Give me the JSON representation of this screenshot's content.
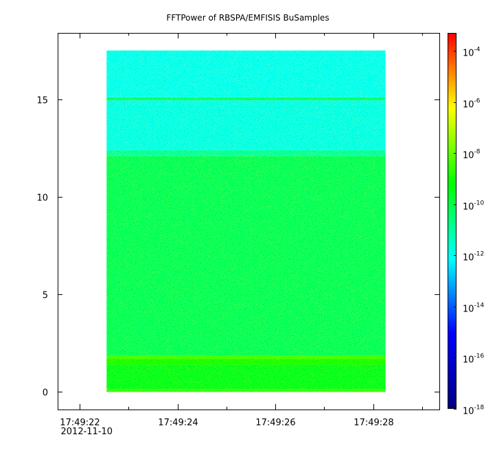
{
  "chart_data": {
    "type": "heatmap",
    "title": "FFTPower of RBSPA/EMFISIS  BuSamples",
    "xlabel": "",
    "ylabel": "",
    "x_range_seconds_of_minute": [
      21.55,
      29.35
    ],
    "data_x_range_seconds_of_minute": [
      22.55,
      28.25
    ],
    "ylim": [
      -0.9,
      18.4
    ],
    "data_y_range": [
      0.0,
      17.5
    ],
    "x_ticks": [
      {
        "value": 22,
        "label": "17:49:22",
        "sublabel": "2012-11-10"
      },
      {
        "value": 24,
        "label": "17:49:24"
      },
      {
        "value": 26,
        "label": "17:49:26"
      },
      {
        "value": 28,
        "label": "17:49:28"
      }
    ],
    "x_minor_ticks": [
      23,
      25,
      27,
      29
    ],
    "y_ticks": [
      {
        "value": 0,
        "label": "0"
      },
      {
        "value": 5,
        "label": "5"
      },
      {
        "value": 10,
        "label": "10"
      },
      {
        "value": 15,
        "label": "15"
      }
    ],
    "colorbar": {
      "scale": "log",
      "min_exponent": -18,
      "max_exponent": -3.3,
      "ticks": [
        {
          "exponent": -4,
          "base": "10",
          "exp": "-4"
        },
        {
          "exponent": -6,
          "base": "10",
          "exp": "-6"
        },
        {
          "exponent": -8,
          "base": "10",
          "exp": "-8"
        },
        {
          "exponent": -10,
          "base": "10",
          "exp": "-10"
        },
        {
          "exponent": -12,
          "base": "10",
          "exp": "-12"
        },
        {
          "exponent": -14,
          "base": "10",
          "exp": "-14"
        },
        {
          "exponent": -16,
          "base": "10",
          "exp": "-16"
        },
        {
          "exponent": -18,
          "base": "10",
          "exp": "-18"
        }
      ],
      "colors": [
        "#00007f",
        "#0000ff",
        "#00ffff",
        "#00ff00",
        "#ffff00",
        "#ff0000"
      ]
    },
    "frequency_bands": [
      {
        "y_from": 0.0,
        "y_to": 0.15,
        "log_power": -8.6,
        "label_color": "#e8ff00"
      },
      {
        "y_from": 0.15,
        "y_to": 1.4,
        "log_power": -9.5,
        "label_color": "#66ff00"
      },
      {
        "y_from": 1.4,
        "y_to": 1.7,
        "log_power": -8.9,
        "label_color": "#ccff00"
      },
      {
        "y_from": 1.7,
        "y_to": 1.85,
        "log_power": -8.4,
        "label_color": "#ffef00"
      },
      {
        "y_from": 1.85,
        "y_to": 12.1,
        "log_power": -10.2,
        "label_color": "#22ff00"
      },
      {
        "y_from": 12.1,
        "y_to": 12.4,
        "log_power": -11.0,
        "label_color": "#00ff55"
      },
      {
        "y_from": 12.4,
        "y_to": 14.95,
        "log_power": -11.8,
        "label_color": "#00ff88"
      },
      {
        "y_from": 14.95,
        "y_to": 15.1,
        "log_power": -10.4,
        "label_color": "#22ff00"
      },
      {
        "y_from": 15.1,
        "y_to": 17.5,
        "log_power": -11.9,
        "label_color": "#00ff90"
      }
    ]
  }
}
